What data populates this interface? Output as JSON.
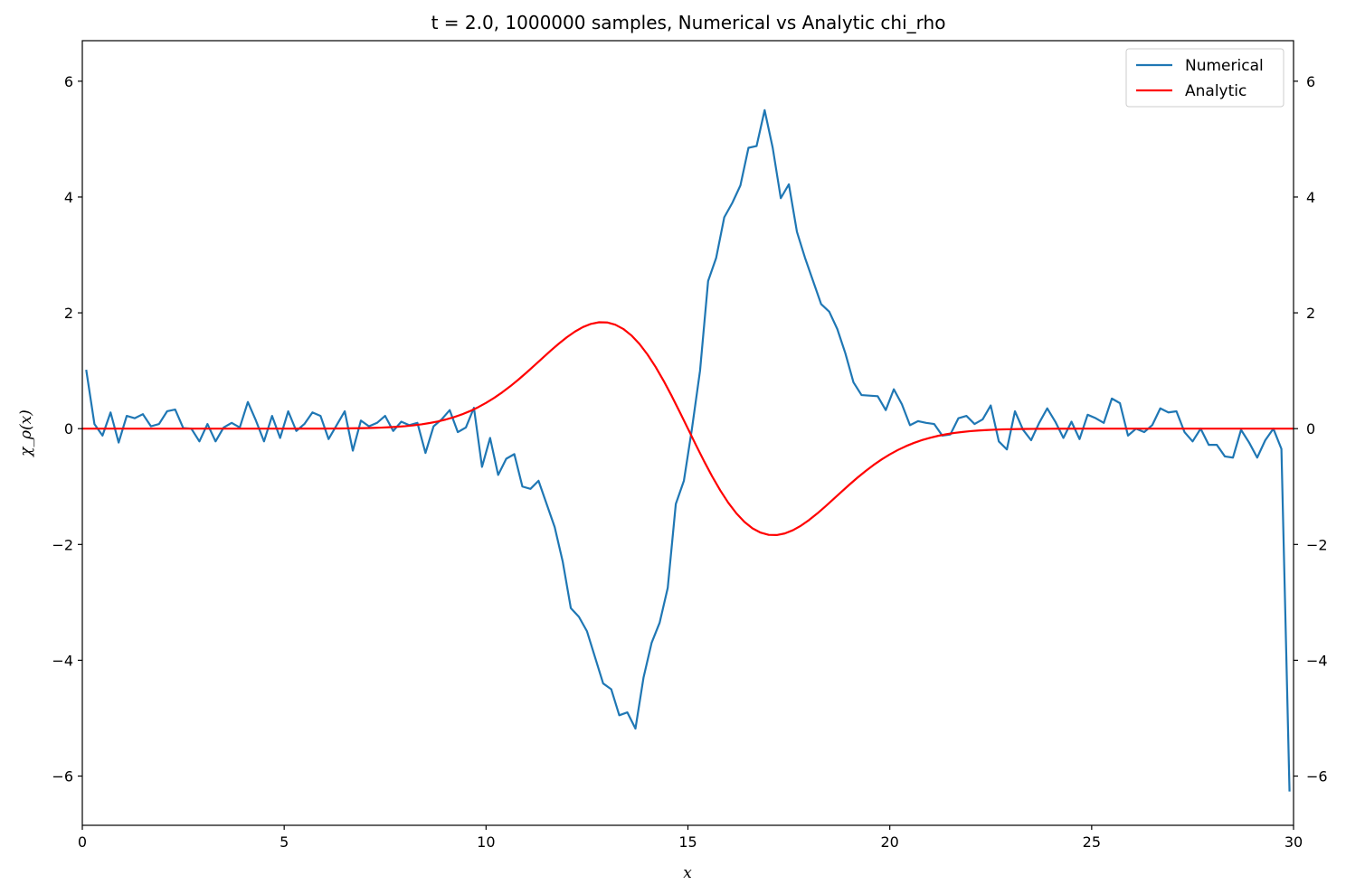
{
  "chart_data": {
    "type": "line",
    "title": "t = 2.0, 1000000 samples, Numerical vs Analytic chi_rho",
    "xlabel": "x",
    "ylabel": "χ_ρ(x)",
    "xlim": [
      0,
      30
    ],
    "ylim": [
      -6.85,
      6.7
    ],
    "x_ticks": [
      0,
      5,
      10,
      15,
      20,
      25,
      30
    ],
    "y_ticks": [
      -6,
      -4,
      -2,
      0,
      2,
      4,
      6
    ],
    "x_tick_labels": [
      "0",
      "5",
      "10",
      "15",
      "20",
      "25",
      "30"
    ],
    "y_tick_labels": [
      "−6",
      "−4",
      "−2",
      "0",
      "2",
      "4",
      "6"
    ],
    "secondary_y_axis": true,
    "grid": false,
    "legend_position": "top-right",
    "series": [
      {
        "name": "Numerical",
        "color": "#1f77b4",
        "x": [
          0.1,
          0.3,
          0.5,
          0.7,
          0.9,
          1.1,
          1.3,
          1.5,
          1.7,
          1.9,
          2.1,
          2.3,
          2.5,
          2.7,
          2.9,
          3.1,
          3.3,
          3.5,
          3.7,
          3.9,
          4.1,
          4.3,
          4.5,
          4.7,
          4.9,
          5.1,
          5.3,
          5.5,
          5.7,
          5.9,
          6.1,
          6.3,
          6.5,
          6.7,
          6.9,
          7.1,
          7.3,
          7.5,
          7.7,
          7.9,
          8.1,
          8.3,
          8.5,
          8.7,
          8.9,
          9.1,
          9.3,
          9.5,
          9.7,
          9.9,
          10.1,
          10.3,
          10.5,
          10.7,
          10.9,
          11.1,
          11.3,
          11.5,
          11.7,
          11.9,
          12.1,
          12.3,
          12.5,
          12.7,
          12.9,
          13.1,
          13.3,
          13.5,
          13.7,
          13.9,
          14.1,
          14.3,
          14.5,
          14.7,
          14.9,
          15.1,
          15.3,
          15.5,
          15.7,
          15.9,
          16.1,
          16.3,
          16.5,
          16.7,
          16.9,
          17.1,
          17.3,
          17.5,
          17.7,
          17.9,
          18.1,
          18.3,
          18.5,
          18.7,
          18.9,
          19.1,
          19.3,
          19.5,
          19.7,
          19.9,
          20.1,
          20.3,
          20.5,
          20.7,
          20.9,
          21.1,
          21.3,
          21.5,
          21.7,
          21.9,
          22.1,
          22.3,
          22.5,
          22.7,
          22.9,
          23.1,
          23.3,
          23.5,
          23.7,
          23.9,
          24.1,
          24.3,
          24.5,
          24.7,
          24.9,
          25.1,
          25.3,
          25.5,
          25.7,
          25.9,
          26.1,
          26.3,
          26.5,
          26.7,
          26.9,
          27.1,
          27.3,
          27.5,
          27.7,
          27.9,
          28.1,
          28.3,
          28.5,
          28.7,
          28.9,
          29.1,
          29.3,
          29.5,
          29.7,
          29.9
        ],
        "y": [
          1.0,
          0.08,
          -0.12,
          0.28,
          -0.24,
          0.22,
          0.18,
          0.25,
          0.04,
          0.08,
          0.3,
          0.33,
          0.01,
          0.0,
          -0.22,
          0.08,
          -0.22,
          0.02,
          0.1,
          0.02,
          0.46,
          0.14,
          -0.22,
          0.22,
          -0.16,
          0.3,
          -0.04,
          0.08,
          0.28,
          0.22,
          -0.18,
          0.06,
          0.3,
          -0.38,
          0.14,
          0.04,
          0.1,
          0.22,
          -0.04,
          0.12,
          0.06,
          0.1,
          -0.42,
          0.04,
          0.16,
          0.32,
          -0.06,
          0.02,
          0.36,
          -0.66,
          -0.16,
          -0.8,
          -0.52,
          -0.44,
          -1.0,
          -1.04,
          -0.9,
          -1.3,
          -1.7,
          -2.3,
          -3.1,
          -3.25,
          -3.5,
          -3.95,
          -4.4,
          -4.5,
          -4.95,
          -4.9,
          -5.18,
          -4.3,
          -3.7,
          -3.35,
          -2.75,
          -1.3,
          -0.9,
          0.0,
          1.0,
          2.55,
          2.95,
          3.65,
          3.9,
          4.2,
          4.85,
          4.88,
          5.5,
          4.85,
          3.98,
          4.22,
          3.4,
          2.95,
          2.55,
          2.15,
          2.02,
          1.72,
          1.3,
          0.8,
          0.58,
          0.57,
          0.56,
          0.32,
          0.68,
          0.42,
          0.06,
          0.13,
          0.1,
          0.08,
          -0.12,
          -0.1,
          0.18,
          0.22,
          0.08,
          0.16,
          0.4,
          -0.22,
          -0.36,
          0.3,
          -0.02,
          -0.2,
          0.1,
          0.35,
          0.12,
          -0.16,
          0.12,
          -0.18,
          0.24,
          0.18,
          0.1,
          0.52,
          0.44,
          -0.12,
          0.0,
          -0.06,
          0.06,
          0.35,
          0.28,
          0.3,
          -0.06,
          -0.22,
          0.0,
          -0.28,
          -0.28,
          -0.48,
          -0.5,
          -0.02,
          -0.24,
          -0.5,
          -0.2,
          0.0,
          -0.35,
          -6.25
        ]
      },
      {
        "name": "Analytic",
        "color": "#ff0000",
        "formula_note": "",
        "x": [],
        "y": []
      }
    ]
  }
}
